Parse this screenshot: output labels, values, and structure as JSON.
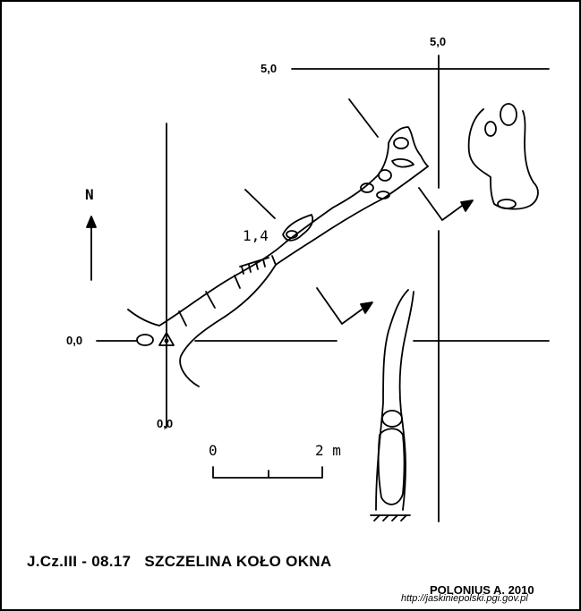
{
  "survey": {
    "coords": {
      "plan_x_origin": "0,0",
      "plan_y_origin": "0,0",
      "plan_x_five": "5,0",
      "plan_y_five": "5,0"
    },
    "depth_label": "1,4",
    "north_label": "N",
    "scale": {
      "start": "0",
      "end": "2 m"
    },
    "title": "J.Cz.III - 08.17   SZCZELINA KOŁO OKNA",
    "author": "POLONIUS A. 2010",
    "url": "http://jaskiniepolski.pgi.gov.pl"
  },
  "colors": {
    "ink": "#000000",
    "paper": "#ffffff"
  },
  "icons": [
    "north-arrow-icon",
    "section-arrow-icon",
    "entrance-triangle-icon"
  ]
}
